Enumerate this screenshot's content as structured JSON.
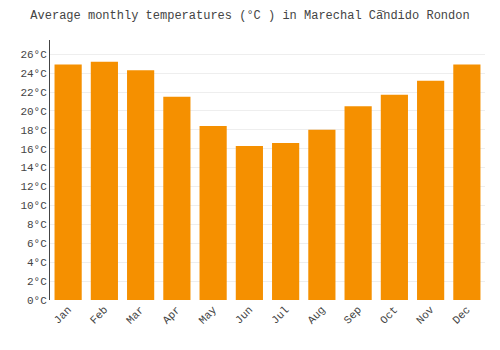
{
  "chart_data": {
    "type": "bar",
    "title": "Average monthly temperatures (°C ) in Marechal Cã̆ndido Rondon",
    "categories": [
      "Jan",
      "Feb",
      "Mar",
      "Apr",
      "May",
      "Jun",
      "Jul",
      "Aug",
      "Sep",
      "Oct",
      "Nov",
      "Dec"
    ],
    "values": [
      24.9,
      25.2,
      24.3,
      21.5,
      18.4,
      16.3,
      16.6,
      18.0,
      20.5,
      21.7,
      23.2,
      24.9
    ],
    "color": "#F59000",
    "ylim": [
      0,
      27.5
    ],
    "yticks": [
      {
        "value": 0,
        "label": "0°C"
      },
      {
        "value": 2,
        "label": "2°C"
      },
      {
        "value": 4,
        "label": "4°C"
      },
      {
        "value": 6,
        "label": "6°C"
      },
      {
        "value": 8,
        "label": "8°C"
      },
      {
        "value": 10,
        "label": "10°C"
      },
      {
        "value": 12,
        "label": "12°C"
      },
      {
        "value": 14,
        "label": "14°C"
      },
      {
        "value": 16,
        "label": "16°C"
      },
      {
        "value": 18,
        "label": "18°C"
      },
      {
        "value": 20,
        "label": "20°C"
      },
      {
        "value": 22,
        "label": "22°C"
      },
      {
        "value": 24,
        "label": "24°C"
      },
      {
        "value": 26,
        "label": "26°C"
      }
    ],
    "grid": true
  }
}
